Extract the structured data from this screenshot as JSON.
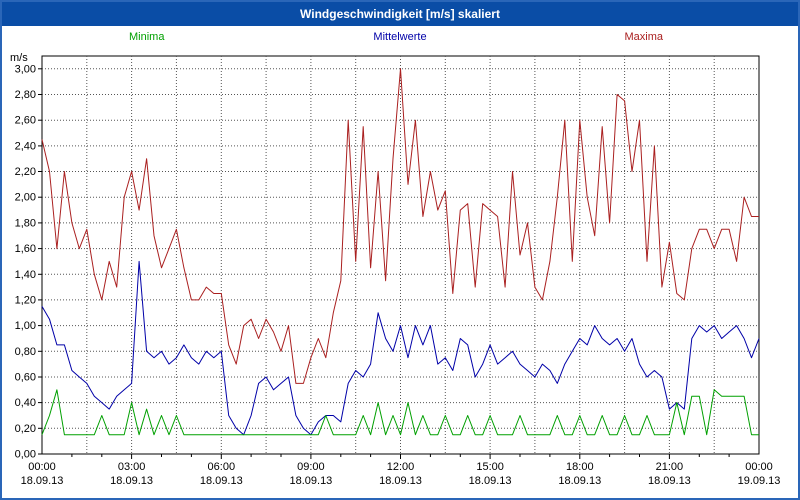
{
  "title_bar": {
    "title": "Windgeschwindigkeit [m/s] skaliert"
  },
  "legend": {
    "items": [
      {
        "label": "Minima",
        "color": "#00a000"
      },
      {
        "label": "Mittelwerte",
        "color": "#0000a8"
      },
      {
        "label": "Maxima",
        "color": "#aa2020"
      }
    ]
  },
  "colors": {
    "titlebar_bg": "#0a4da6",
    "page_border": "#2a66b8",
    "plot_border": "#000000",
    "grid": "#555555",
    "plot_bg": "#ffffff"
  },
  "chart_data": {
    "type": "line",
    "title": "Windgeschwindigkeit [m/s] skaliert",
    "ylabel": "m/s",
    "ylim": [
      0,
      3.1
    ],
    "y_tick_step": 0.2,
    "y_tick_labels": [
      "0,00",
      "0,20",
      "0,40",
      "0,60",
      "0,80",
      "1,00",
      "1,20",
      "1,40",
      "1,60",
      "1,80",
      "2,00",
      "2,20",
      "2,40",
      "2,60",
      "2,80",
      "3,00"
    ],
    "grid": "dotted",
    "x_unit": "hours",
    "x_start": 0,
    "x_end": 24,
    "x_step": 0.25,
    "x_minor_grid_hours": 1.5,
    "x_ticks": [
      {
        "time": "00:00",
        "date": "18.09.13"
      },
      {
        "time": "03:00",
        "date": "18.09.13"
      },
      {
        "time": "06:00",
        "date": "18.09.13"
      },
      {
        "time": "09:00",
        "date": "18.09.13"
      },
      {
        "time": "12:00",
        "date": "18.09.13"
      },
      {
        "time": "15:00",
        "date": "18.09.13"
      },
      {
        "time": "18:00",
        "date": "18.09.13"
      },
      {
        "time": "21:00",
        "date": "18.09.13"
      },
      {
        "time": "00:00",
        "date": "19.09.13"
      }
    ],
    "series": [
      {
        "name": "Maxima",
        "color": "#aa2020",
        "values": [
          2.45,
          2.2,
          1.6,
          2.2,
          1.8,
          1.6,
          1.75,
          1.4,
          1.2,
          1.5,
          1.3,
          2.0,
          2.2,
          1.9,
          2.3,
          1.7,
          1.45,
          1.6,
          1.75,
          1.45,
          1.2,
          1.2,
          1.3,
          1.25,
          1.25,
          0.85,
          0.7,
          1.0,
          1.05,
          0.9,
          1.05,
          0.95,
          0.8,
          1.0,
          0.55,
          0.55,
          0.75,
          0.9,
          0.75,
          1.1,
          1.35,
          2.6,
          1.5,
          2.55,
          1.45,
          2.2,
          1.35,
          2.3,
          3.0,
          2.1,
          2.6,
          1.85,
          2.2,
          1.9,
          2.05,
          1.25,
          1.9,
          1.95,
          1.3,
          1.95,
          1.9,
          1.85,
          1.3,
          2.2,
          1.55,
          1.8,
          1.3,
          1.2,
          1.5,
          2.0,
          2.6,
          1.5,
          2.6,
          2.0,
          1.7,
          2.55,
          1.8,
          2.8,
          2.75,
          2.2,
          2.6,
          1.5,
          2.4,
          1.3,
          1.65,
          1.25,
          1.2,
          1.6,
          1.75,
          1.75,
          1.6,
          1.75,
          1.75,
          1.5,
          2.0,
          1.85,
          1.85
        ]
      },
      {
        "name": "Mittelwerte",
        "color": "#0000a8",
        "values": [
          1.15,
          1.05,
          0.85,
          0.85,
          0.65,
          0.6,
          0.55,
          0.45,
          0.4,
          0.35,
          0.45,
          0.5,
          0.55,
          1.5,
          0.8,
          0.75,
          0.8,
          0.7,
          0.75,
          0.85,
          0.75,
          0.7,
          0.8,
          0.75,
          0.8,
          0.3,
          0.2,
          0.15,
          0.3,
          0.55,
          0.6,
          0.5,
          0.55,
          0.6,
          0.3,
          0.2,
          0.15,
          0.25,
          0.3,
          0.3,
          0.25,
          0.55,
          0.65,
          0.6,
          0.7,
          1.1,
          0.9,
          0.8,
          1.0,
          0.75,
          1.0,
          0.85,
          1.0,
          0.7,
          0.75,
          0.65,
          0.9,
          0.85,
          0.6,
          0.7,
          0.85,
          0.7,
          0.75,
          0.8,
          0.7,
          0.65,
          0.6,
          0.7,
          0.65,
          0.55,
          0.7,
          0.8,
          0.9,
          0.85,
          1.0,
          0.9,
          0.85,
          0.9,
          0.8,
          0.9,
          0.7,
          0.6,
          0.65,
          0.6,
          0.35,
          0.4,
          0.35,
          0.9,
          1.0,
          0.95,
          1.0,
          0.9,
          0.95,
          1.0,
          0.9,
          0.75,
          0.9
        ]
      },
      {
        "name": "Minima",
        "color": "#00a000",
        "values": [
          0.15,
          0.3,
          0.5,
          0.15,
          0.15,
          0.15,
          0.15,
          0.15,
          0.3,
          0.15,
          0.15,
          0.15,
          0.4,
          0.15,
          0.35,
          0.15,
          0.3,
          0.15,
          0.3,
          0.15,
          0.15,
          0.15,
          0.15,
          0.15,
          0.15,
          0.15,
          0.15,
          0.15,
          0.15,
          0.15,
          0.15,
          0.15,
          0.15,
          0.15,
          0.15,
          0.15,
          0.15,
          0.15,
          0.3,
          0.15,
          0.15,
          0.15,
          0.15,
          0.3,
          0.15,
          0.4,
          0.15,
          0.3,
          0.15,
          0.4,
          0.15,
          0.3,
          0.15,
          0.15,
          0.3,
          0.15,
          0.15,
          0.3,
          0.15,
          0.15,
          0.3,
          0.15,
          0.15,
          0.15,
          0.3,
          0.15,
          0.15,
          0.15,
          0.15,
          0.3,
          0.15,
          0.15,
          0.3,
          0.15,
          0.15,
          0.3,
          0.15,
          0.15,
          0.3,
          0.15,
          0.15,
          0.3,
          0.15,
          0.15,
          0.15,
          0.4,
          0.15,
          0.45,
          0.45,
          0.15,
          0.5,
          0.45,
          0.45,
          0.45,
          0.45,
          0.15,
          0.15
        ]
      }
    ]
  }
}
